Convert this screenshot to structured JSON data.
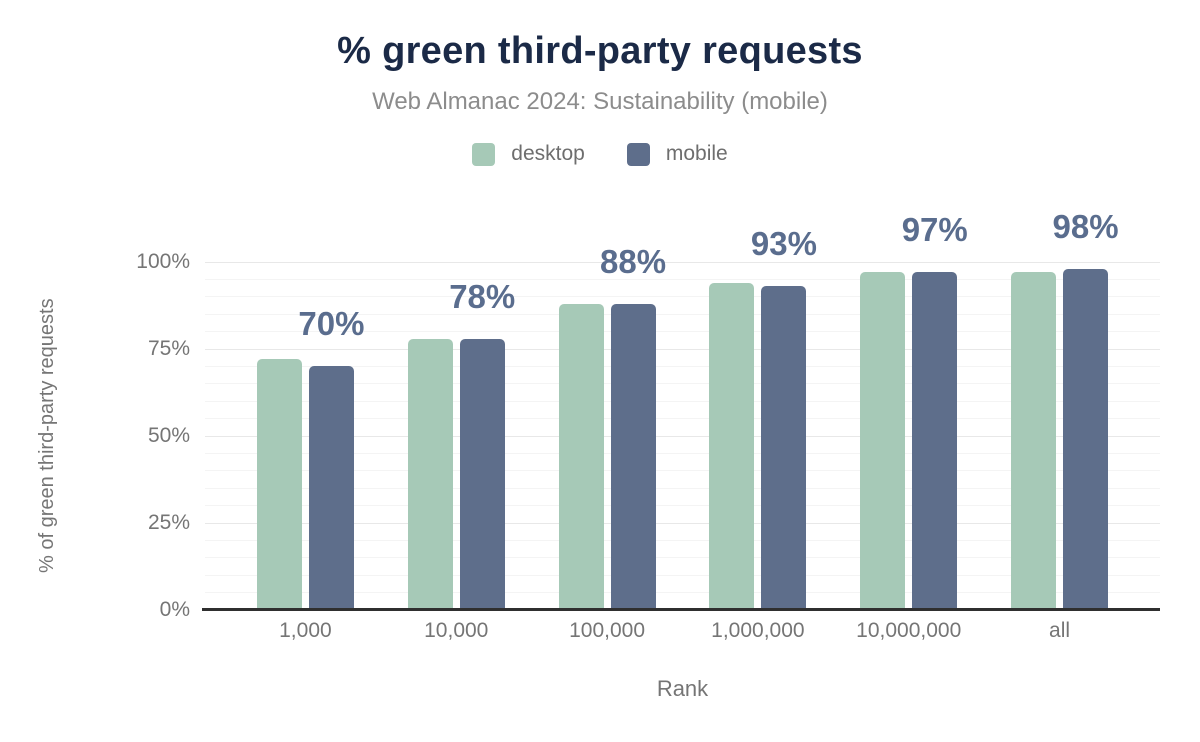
{
  "title": "% green third-party requests",
  "subtitle": "Web Almanac 2024: Sustainability (mobile)",
  "colors": {
    "title": "#1b2a47",
    "subtitle": "#8c8c8c",
    "axis_text": "#757575",
    "legend_text": "#6e6e6e",
    "data_label": "#5a6d8e",
    "axis_line": "#2f2f2f",
    "grid_major": "#e8e8e8",
    "grid_minor": "#f4f4f4",
    "desktop": "#a6c9b7",
    "mobile": "#5e6e8b"
  },
  "chart_data": {
    "type": "bar",
    "title": "% green third-party requests",
    "subtitle": "Web Almanac 2024: Sustainability (mobile)",
    "categories": [
      "1,000",
      "10,000",
      "100,000",
      "1,000,000",
      "10,000,000",
      "all"
    ],
    "series": [
      {
        "name": "desktop",
        "color": "#a6c9b7",
        "values": [
          72,
          78,
          88,
          94,
          97,
          97
        ]
      },
      {
        "name": "mobile",
        "color": "#5e6e8b",
        "values": [
          70,
          78,
          88,
          93,
          97,
          98
        ]
      }
    ],
    "data_labels": [
      "70%",
      "78%",
      "88%",
      "93%",
      "97%",
      "98%"
    ],
    "data_label_series": "mobile",
    "xlabel": "Rank",
    "ylabel": "% of green third-party requests",
    "yticks": [
      0,
      25,
      50,
      75,
      100
    ],
    "ytick_labels": [
      "0%",
      "25%",
      "50%",
      "75%",
      "100%"
    ],
    "ylim": [
      0,
      100
    ],
    "grid": "horizontal, minor every 5%, major every 25%",
    "legend_position": "top center"
  }
}
